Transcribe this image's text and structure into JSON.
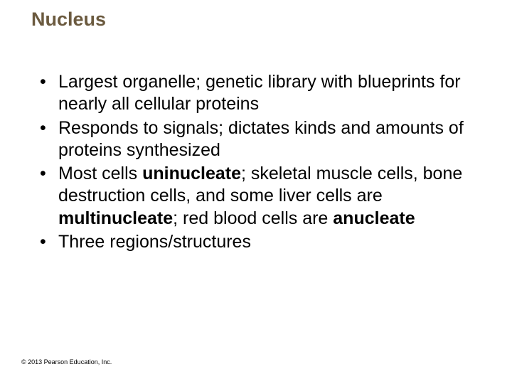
{
  "title": "Nucleus",
  "bullets": {
    "b0": "Largest organelle; genetic library with blueprints for nearly all cellular proteins",
    "b1": "Responds to signals; dictates kinds and amounts of proteins synthesized",
    "b2_pre": "Most cells ",
    "b2_bold1": "uninucleate",
    "b2_mid": "; skeletal muscle cells, bone destruction cells, and some liver cells are ",
    "b2_bold2": "multinucleate",
    "b2_mid2": "; red blood cells are ",
    "b2_bold3": "anucleate",
    "b3": "Three regions/structures"
  },
  "copyright": "© 2013 Pearson Education, Inc.",
  "style": {
    "background_color": "#ffffff",
    "title_color": "#6b5a3f",
    "title_fontsize": 27,
    "title_fontweight": "bold",
    "body_fontsize": 25,
    "body_color": "#000000",
    "copyright_fontsize": 9,
    "font_family": "Arial"
  }
}
